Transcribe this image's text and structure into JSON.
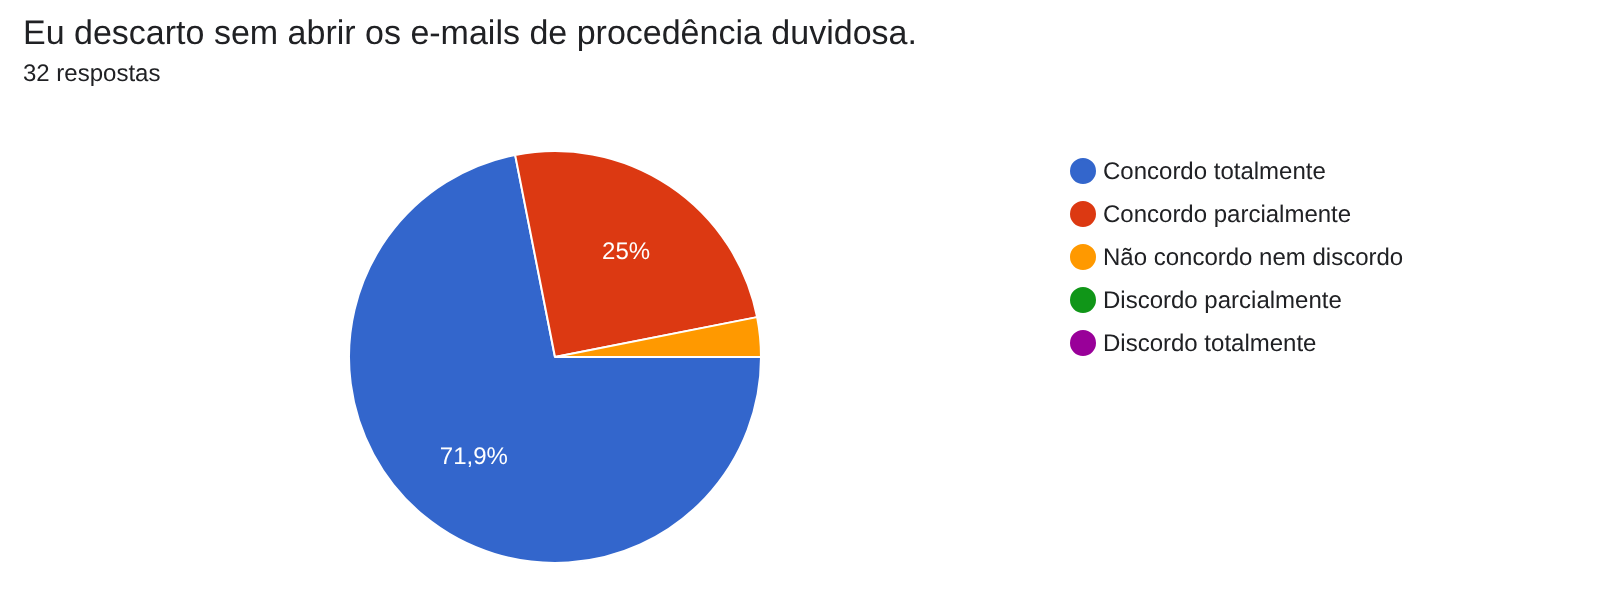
{
  "chart_data": {
    "type": "pie",
    "title": "Eu descarto sem abrir os e-mails de procedência duvidosa.",
    "subtitle": "32 respostas",
    "categories": [
      "Concordo totalmente",
      "Concordo parcialmente",
      "Não concordo nem discordo",
      "Discordo parcialmente",
      "Discordo totalmente"
    ],
    "values": [
      71.9,
      25,
      3.1,
      0,
      0
    ],
    "colors": [
      "#3366cc",
      "#dc3912",
      "#ff9900",
      "#109618",
      "#990099"
    ],
    "value_labels": [
      "71,9%",
      "25%",
      null,
      null,
      null
    ],
    "legend": "right"
  }
}
